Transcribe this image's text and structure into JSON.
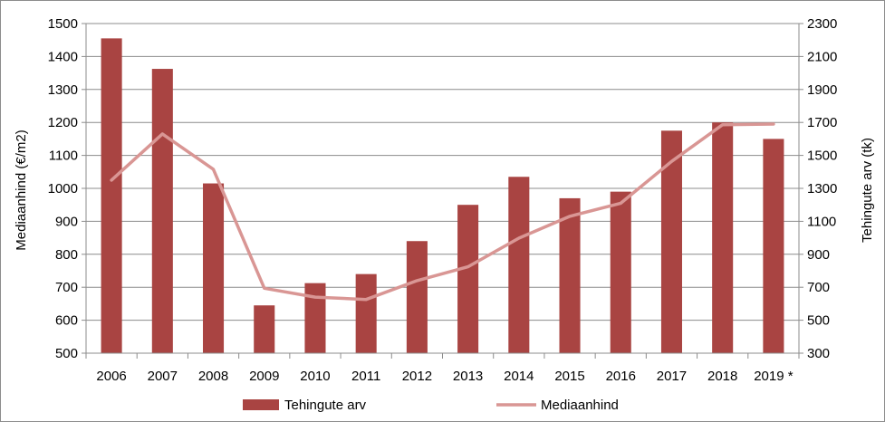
{
  "chart_data": {
    "type": "bar",
    "categories": [
      "2006",
      "2007",
      "2008",
      "2009",
      "2010",
      "2011",
      "2012",
      "2013",
      "2014",
      "2015",
      "2016",
      "2017",
      "2018",
      "2019 *"
    ],
    "series": [
      {
        "name": "Tehingute arv",
        "type": "bar",
        "axis": "right",
        "color": "#a94442",
        "values": [
          2210,
          2025,
          1330,
          590,
          725,
          780,
          980,
          1200,
          1370,
          1240,
          1280,
          1650,
          1700,
          1600
        ]
      },
      {
        "name": "Mediaanhind",
        "type": "line",
        "axis": "left",
        "color": "#d99694",
        "values": [
          1025,
          1165,
          1058,
          697,
          670,
          663,
          720,
          762,
          849,
          915,
          955,
          1082,
          1193,
          1195
        ]
      }
    ],
    "ylabel": "Mediaanhind (€/m2)",
    "ylim": [
      500,
      1500
    ],
    "yticks": [
      500,
      600,
      700,
      800,
      900,
      1000,
      1100,
      1200,
      1300,
      1400,
      1500
    ],
    "y2label": "Tehingute arv (tk)",
    "y2lim": [
      300,
      2300
    ],
    "y2ticks": [
      300,
      500,
      700,
      900,
      1100,
      1300,
      1500,
      1700,
      1900,
      2100,
      2300
    ],
    "grid": true,
    "legend": "bottom"
  }
}
